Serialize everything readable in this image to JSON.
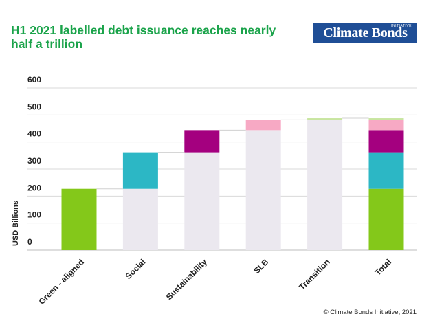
{
  "title": "H1 2021 labelled debt issuance reaches nearly half a trillion",
  "logo": {
    "main": "Climate Bonds",
    "tag": "INITIATIVE",
    "bg": "#1f4e96"
  },
  "copyright": "© Climate Bonds Initiative, 2021",
  "chart_data": {
    "type": "bar",
    "subtype": "waterfall",
    "categories": [
      "Green - aligned",
      "Social",
      "Sustainability",
      "SLB",
      "Transition",
      "Total"
    ],
    "ylabel": "USD Billions",
    "ylim": [
      0,
      600
    ],
    "yticks": [
      0,
      100,
      200,
      300,
      400,
      500,
      600
    ],
    "grid": true,
    "base_color": "#ebe8ef",
    "series": [
      {
        "category": "Green - aligned",
        "value": 227,
        "color": "#84c81a"
      },
      {
        "category": "Social",
        "value": 135,
        "color": "#2cb7c5"
      },
      {
        "category": "Sustainability",
        "value": 82,
        "color": "#a4007f"
      },
      {
        "category": "SLB",
        "value": 38,
        "color": "#f7a9c4"
      },
      {
        "category": "Transition",
        "value": 6,
        "color": "#c8e5a0"
      }
    ],
    "total": 488
  }
}
